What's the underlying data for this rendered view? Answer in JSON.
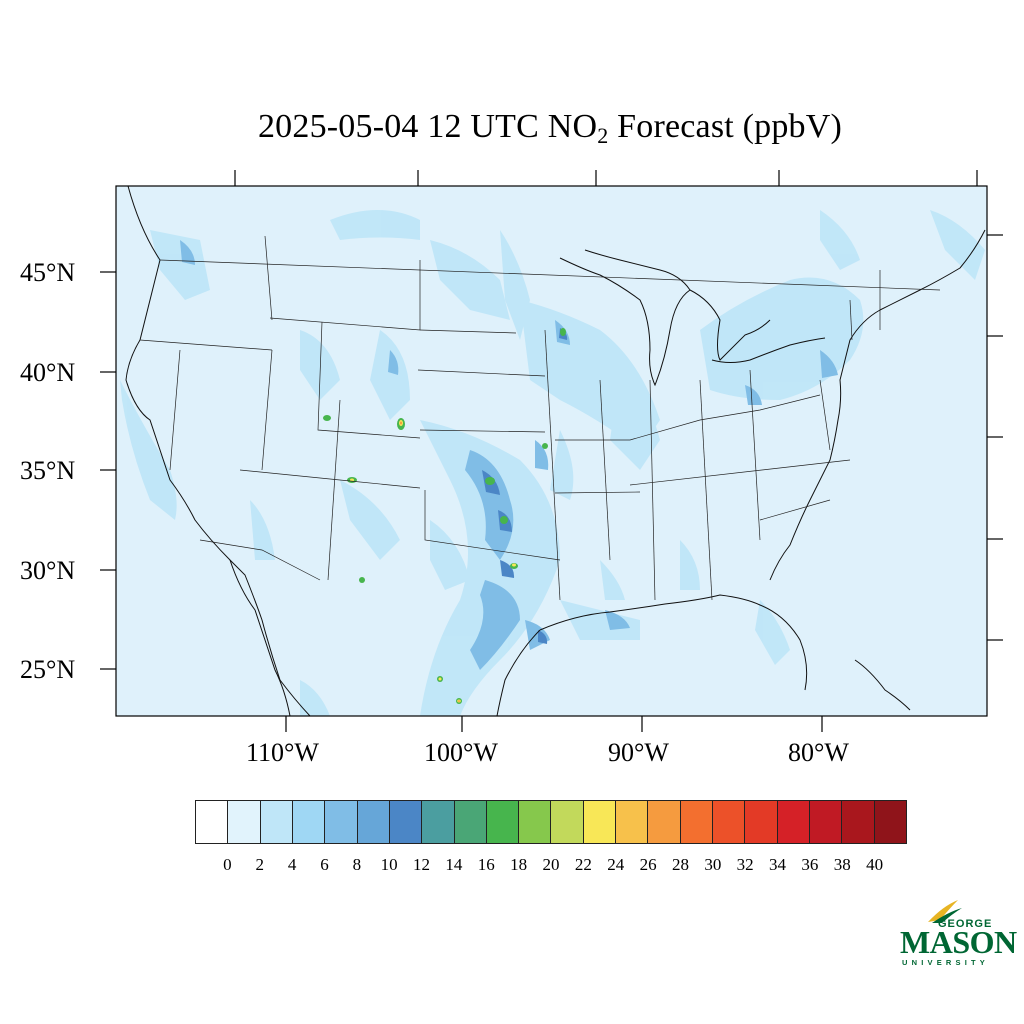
{
  "title": {
    "main": "2025-05-04 12 UTC NO",
    "subscript": "2",
    "suffix": " Forecast (ppbV)"
  },
  "map": {
    "background_color": "#dff1fb",
    "lat_labels": [
      "45°N",
      "40°N",
      "35°N",
      "30°N",
      "25°N"
    ],
    "lon_labels": [
      "110°W",
      "100°W",
      "90°W",
      "80°W"
    ]
  },
  "colorbar": {
    "colors": [
      "#ffffff",
      "#e1f3fc",
      "#bfe6f8",
      "#9fd7f4",
      "#80bde6",
      "#66a6d8",
      "#4b86c6",
      "#4b9ea0",
      "#4aa676",
      "#47b54d",
      "#86c84c",
      "#c2d95b",
      "#f8e757",
      "#f7c14b",
      "#f59b3f",
      "#f36f2f",
      "#ec5129",
      "#e33a26",
      "#d52127",
      "#c01a24",
      "#a9171d",
      "#8f141a"
    ],
    "ticks": [
      "0",
      "2",
      "4",
      "6",
      "8",
      "10",
      "12",
      "14",
      "16",
      "18",
      "20",
      "22",
      "24",
      "26",
      "28",
      "30",
      "32",
      "34",
      "36",
      "38",
      "40"
    ]
  },
  "logo": {
    "line1": "GEORGE",
    "line2": "MASON",
    "line3": "UNIVERSITY",
    "color": "#006633",
    "accent": "#e7b423"
  }
}
